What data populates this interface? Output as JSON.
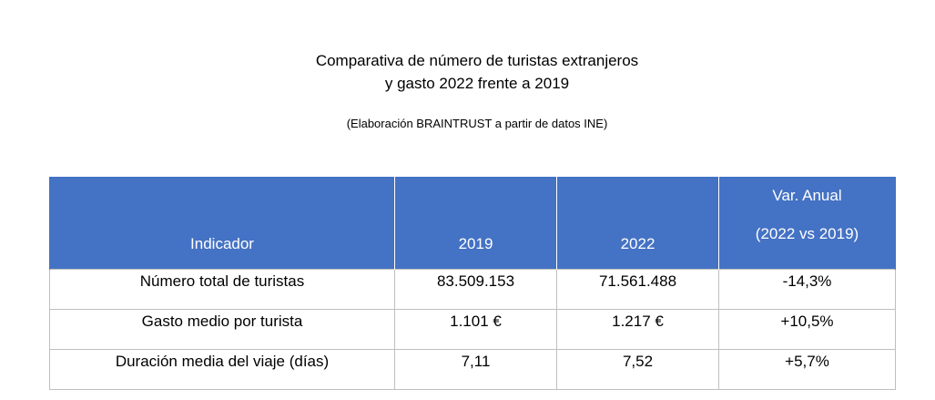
{
  "title": {
    "line1": "Comparativa de número de turistas extranjeros",
    "line2": "y gasto 2022 frente a 2019"
  },
  "subtitle": "(Elaboración BRAINTRUST a partir de datos INE)",
  "table": {
    "headers": {
      "indicador": "Indicador",
      "y2019": "2019",
      "y2022": "2022",
      "var_line1": "Var. Anual",
      "var_line2": "(2022 vs 2019)"
    },
    "rows": [
      {
        "indicador": "Número total de turistas",
        "y2019": "83.509.153",
        "y2022": "71.561.488",
        "var": "-14,3%"
      },
      {
        "indicador": "Gasto medio por turista",
        "y2019": "1.101 €",
        "y2022": "1.217 €",
        "var": "+10,5%"
      },
      {
        "indicador": "Duración media del viaje (días)",
        "y2019": "7,11",
        "y2022": "7,52",
        "var": "+5,7%"
      }
    ]
  },
  "colors": {
    "header_bg": "#4472c4",
    "header_text": "#ffffff",
    "grid": "#bfbfbf"
  }
}
